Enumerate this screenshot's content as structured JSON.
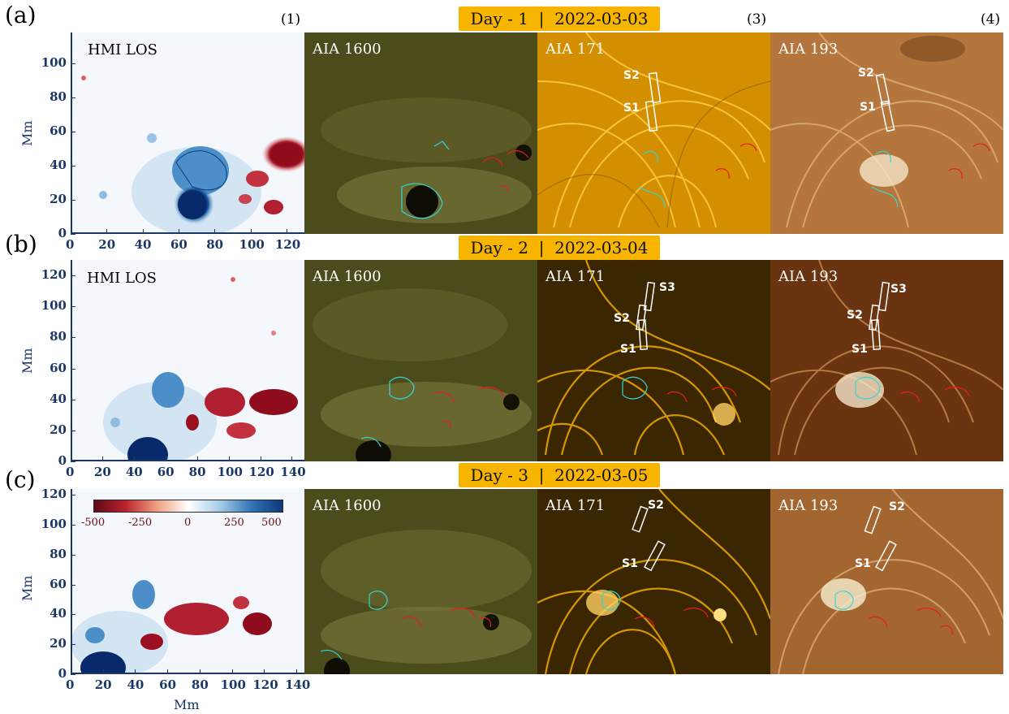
{
  "rows": [
    {
      "label": "(a)",
      "day": "Day - 1  |  2022-03-03",
      "hmi_yticks": [
        "0",
        "20",
        "40",
        "60",
        "80",
        "100"
      ],
      "hmi_xticks": [
        "0",
        "20",
        "40",
        "60",
        "80",
        "100",
        "120"
      ],
      "aia171_slits": [
        "S2",
        "S1"
      ],
      "aia193_slits": [
        "S2",
        "S1"
      ]
    },
    {
      "label": "(b)",
      "day": "Day - 2  |  2022-03-04",
      "hmi_yticks": [
        "0",
        "20",
        "40",
        "60",
        "80",
        "100",
        "120"
      ],
      "hmi_xticks": [
        "0",
        "20",
        "40",
        "60",
        "80",
        "100",
        "120",
        "140"
      ],
      "aia171_slits": [
        "S3",
        "S2",
        "S1"
      ],
      "aia193_slits": [
        "S3",
        "S2",
        "S1"
      ]
    },
    {
      "label": "(c)",
      "day": "Day - 3  |  2022-03-05",
      "hmi_yticks": [
        "0",
        "20",
        "40",
        "60",
        "80",
        "100",
        "120"
      ],
      "hmi_xticks": [
        "0",
        "20",
        "40",
        "60",
        "80",
        "100",
        "120",
        "140"
      ],
      "aia171_slits": [
        "S2",
        "S1"
      ],
      "aia193_slits": [
        "S2",
        "S1"
      ]
    }
  ],
  "columns": [
    "(1)",
    "(3)",
    "(4)"
  ],
  "panel_names": {
    "hmi": "HMI LOS",
    "aia1600": "AIA 1600",
    "aia171": "AIA 171",
    "aia193": "AIA 193"
  },
  "axis_label": "Mm",
  "colorbar": {
    "ticks": [
      "-500",
      "-250",
      "0",
      "250",
      "500"
    ]
  },
  "colors": {
    "banner": "#f7b500",
    "positive_contour": "#31d8d8",
    "negative_contour": "#e81d1d",
    "aia171": "#e6a300",
    "aia193": "#b4763c",
    "aia1600": "#4b4b1c"
  }
}
